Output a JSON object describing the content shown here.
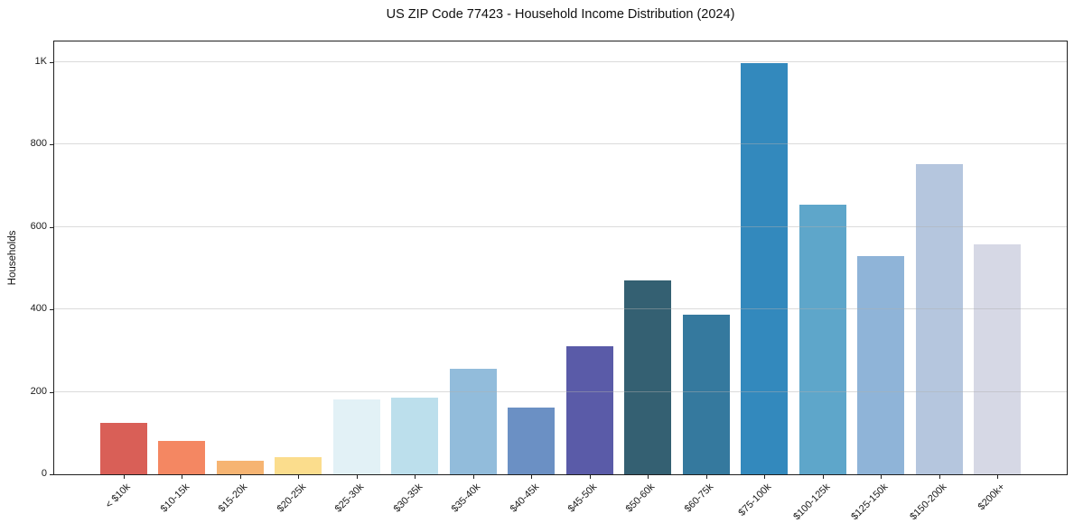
{
  "chart_data": {
    "type": "bar",
    "title": "US ZIP Code 77423 - Household Income Distribution (2024)",
    "xlabel": "",
    "ylabel": "Households",
    "categories": [
      "< $10k",
      "$10-15k",
      "$15-20k",
      "$20-25k",
      "$25-30k",
      "$30-35k",
      "$35-40k",
      "$40-45k",
      "$45-50k",
      "$50-60k",
      "$60-75k",
      "$75-100k",
      "$100-125k",
      "$125-150k",
      "$150-200k",
      "$200k+"
    ],
    "values": [
      125,
      80,
      33,
      41,
      181,
      187,
      255,
      162,
      310,
      470,
      388,
      998,
      655,
      530,
      752,
      557
    ],
    "bar_colors": [
      "#d95f57",
      "#f48762",
      "#f6b472",
      "#fbdd8d",
      "#e2f1f6",
      "#bcdfec",
      "#92bcdb",
      "#6b90c4",
      "#5a5ba8",
      "#346072",
      "#35799e",
      "#3389bd",
      "#5ea6ca",
      "#8fb4d8",
      "#b5c6de",
      "#d6d8e5"
    ],
    "ylim": [
      0,
      1050
    ],
    "yticks": [
      {
        "value": 0,
        "label": "0"
      },
      {
        "value": 200,
        "label": "200"
      },
      {
        "value": 400,
        "label": "400"
      },
      {
        "value": 600,
        "label": "600"
      },
      {
        "value": 800,
        "label": "800"
      },
      {
        "value": 1000,
        "label": "1K"
      }
    ],
    "grid": "horizontal gridlines at yticks, light gray, drawn over bars",
    "legend": "none",
    "bar_width_fraction": 0.8,
    "x_axis_margin_units": 1.19
  }
}
